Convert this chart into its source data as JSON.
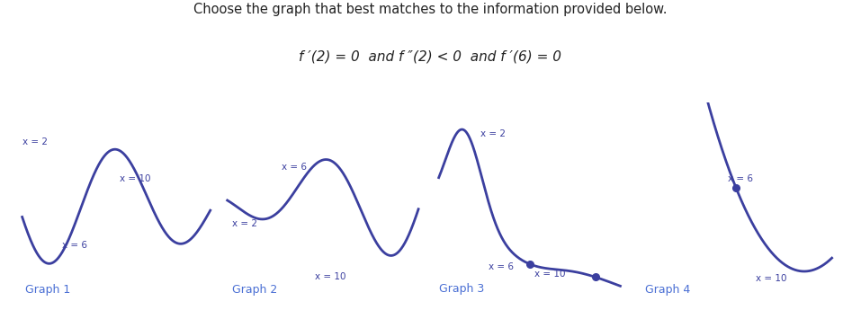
{
  "title": "Choose the graph that best matches to the information provided below.",
  "subtitle": "f ′(2) = 0  and f ″(2) < 0  and f ′(6) = 0",
  "graph_labels": [
    "Graph 1",
    "Graph 2",
    "Graph 3",
    "Graph 4"
  ],
  "curve_color": "#3b3f9f",
  "label_color": "#3b3f9f",
  "dot_color": "#3b3f9f",
  "title_color": "#222222",
  "subtitle_color": "#222222",
  "graph_label_color": "#4a6fd4",
  "bg_color": "#ffffff"
}
